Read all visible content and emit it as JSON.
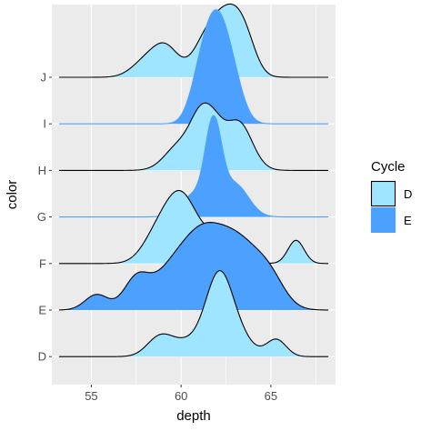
{
  "chart_data": {
    "type": "ridgeline",
    "xlabel": "depth",
    "ylabel": "color",
    "xlim": [
      52.8,
      68.6
    ],
    "x_ticks": [
      55,
      60,
      65
    ],
    "x_tick_labels": [
      "55",
      "60",
      "65"
    ],
    "categories": [
      "D",
      "E",
      "F",
      "G",
      "H",
      "I",
      "J"
    ],
    "grid": true,
    "panel_background": "#ebebeb",
    "legend": {
      "title": "Cycle",
      "placement": "right",
      "entries": [
        {
          "label": "D",
          "fill": "#a0e5ff",
          "stroke": "#000000"
        },
        {
          "label": "E",
          "fill": "#4ca1ff",
          "stroke": "#4ca1ff"
        }
      ]
    },
    "ridges": [
      {
        "category": "D",
        "cycle": "D",
        "fill": "#a0e5ff",
        "stroke": "#000000",
        "range": [
          53.2,
          68.2
        ],
        "bumps": [
          [
            58.8,
            0.7,
            0.24
          ],
          [
            60.3,
            0.9,
            0.18
          ],
          [
            62.1,
            0.75,
            1.0
          ],
          [
            63.2,
            0.8,
            0.22
          ],
          [
            65.3,
            0.55,
            0.22
          ]
        ]
      },
      {
        "category": "E",
        "cycle": "E",
        "fill": "#4ca1ff",
        "stroke": "#000000",
        "range": [
          53.2,
          68.2
        ],
        "bumps": [
          [
            55.3,
            0.65,
            0.2
          ],
          [
            57.5,
            0.7,
            0.38
          ],
          [
            59.2,
            1.0,
            0.35
          ],
          [
            61.0,
            1.15,
            0.82
          ],
          [
            63.2,
            1.3,
            0.85
          ],
          [
            65.0,
            0.8,
            0.25
          ]
        ]
      },
      {
        "category": "F",
        "cycle": "D",
        "fill": "#a0e5ff",
        "stroke": "#000000",
        "range": [
          53.2,
          68.2
        ],
        "bumps": [
          [
            58.6,
            0.8,
            0.3
          ],
          [
            60.0,
            0.9,
            0.86
          ],
          [
            62.0,
            0.8,
            0.3
          ],
          [
            63.5,
            0.5,
            0.16
          ],
          [
            66.4,
            0.45,
            0.3
          ]
        ]
      },
      {
        "category": "G",
        "cycle": "E",
        "fill": "#4ca1ff",
        "stroke": "#4ca1ff",
        "range": [
          53.2,
          68.2
        ],
        "bumps": [
          [
            60.7,
            0.75,
            0.28
          ],
          [
            61.8,
            0.45,
            1.1
          ],
          [
            63.0,
            0.75,
            0.42
          ]
        ]
      },
      {
        "category": "H",
        "cycle": "D",
        "fill": "#a0e5ff",
        "stroke": "#000000",
        "range": [
          53.2,
          68.2
        ],
        "bumps": [
          [
            59.9,
            0.8,
            0.32
          ],
          [
            61.1,
            0.6,
            0.6
          ],
          [
            61.9,
            0.55,
            0.38
          ],
          [
            63.2,
            0.75,
            0.62
          ]
        ]
      },
      {
        "category": "I",
        "cycle": "E",
        "fill": "#4ca1ff",
        "stroke": "#4ca1ff",
        "range": [
          53.2,
          68.2
        ],
        "bumps": [
          [
            61.1,
            0.6,
            0.55
          ],
          [
            62.0,
            0.65,
            1.15
          ],
          [
            62.9,
            0.6,
            0.45
          ]
        ]
      },
      {
        "category": "J",
        "cycle": "D",
        "fill": "#a0e5ff",
        "stroke": "#000000",
        "range": [
          53.2,
          68.2
        ],
        "bumps": [
          [
            58.1,
            0.8,
            0.22
          ],
          [
            59.2,
            0.7,
            0.34
          ],
          [
            61.4,
            0.75,
            0.45
          ],
          [
            62.7,
            0.8,
            0.75
          ],
          [
            63.6,
            0.6,
            0.3
          ]
        ]
      }
    ]
  }
}
